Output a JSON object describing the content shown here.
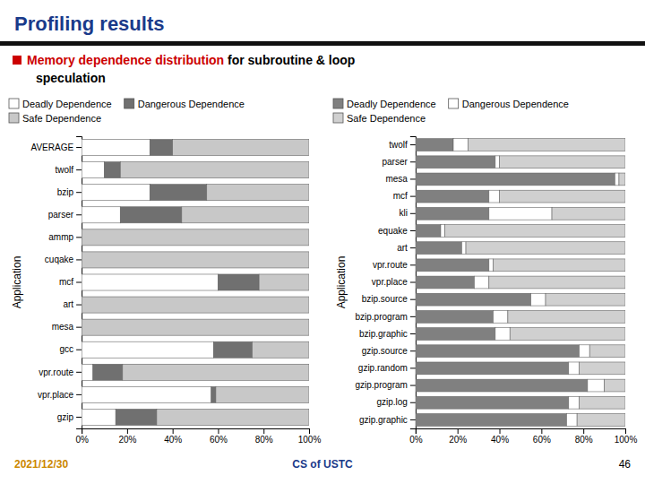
{
  "title": {
    "text": "Profiling results",
    "color": "#1a3a8a"
  },
  "subtitle": [
    {
      "text": "Memory dependence distribution",
      "color": "#cc0000"
    },
    {
      "text": " for subroutine & loop",
      "color": "#000000"
    },
    {
      "text": "speculation",
      "color": "#000000"
    }
  ],
  "annotations": [
    {
      "text": "2021/12/30",
      "color": "#cc8800"
    },
    {
      "text": "CS of USTC",
      "color": "#1a3a8a"
    },
    {
      "text": "46",
      "color": "#000000"
    }
  ],
  "chart_data": [
    {
      "type": "bar",
      "orientation": "horizontal",
      "stacked": true,
      "legend": "top",
      "ylabel": "Application",
      "categories": [
        "AVERAGE",
        "twolf",
        "bzip",
        "parser",
        "ammp",
        "cuqake",
        "mcf",
        "art",
        "mesa",
        "gcc",
        "vpr.route",
        "vpr.place",
        "gzip"
      ],
      "series": [
        {
          "name": "Deadly Dependence",
          "color": "#ffffff",
          "values": [
            30,
            10,
            30,
            17,
            0,
            0,
            60,
            0,
            0,
            58,
            5,
            57,
            15
          ]
        },
        {
          "name": "Dangerous Dependence",
          "color": "#707070",
          "values": [
            10,
            7,
            25,
            27,
            0,
            0,
            18,
            0,
            0,
            17,
            13,
            2,
            18
          ]
        },
        {
          "name": "Safe Dependence",
          "color": "#c8c8c8",
          "values": [
            60,
            83,
            45,
            56,
            100,
            100,
            22,
            100,
            100,
            25,
            82,
            41,
            67
          ]
        }
      ],
      "xlim": [
        0,
        100
      ],
      "xticks": [
        {
          "value": 0,
          "label": "0%"
        },
        {
          "value": 20,
          "label": "20%"
        },
        {
          "value": 40,
          "label": "40%"
        },
        {
          "value": 60,
          "label": "60%"
        },
        {
          "value": 80,
          "label": "80%"
        },
        {
          "value": 100,
          "label": "100%"
        }
      ]
    },
    {
      "type": "bar",
      "orientation": "horizontal",
      "stacked": true,
      "legend": "top",
      "ylabel": "Application",
      "categories": [
        "twolf",
        "parser",
        "mesa",
        "mcf",
        "kli",
        "equake",
        "art",
        "vpr.route",
        "vpr.place",
        "bzip.source",
        "bzip.program",
        "bzip.graphic",
        "gzip.source",
        "gzip.random",
        "gzip.program",
        "gzip.log",
        "gzip.graphic"
      ],
      "series": [
        {
          "name": "Deadly Dependence",
          "color": "#808080",
          "values": [
            18,
            38,
            95,
            35,
            35,
            12,
            22,
            35,
            28,
            55,
            37,
            38,
            78,
            73,
            82,
            73,
            72
          ]
        },
        {
          "name": "Dangerous Dependence",
          "color": "#ffffff",
          "values": [
            7,
            2,
            2,
            5,
            30,
            2,
            2,
            2,
            7,
            7,
            7,
            7,
            5,
            5,
            8,
            5,
            5
          ]
        },
        {
          "name": "Safe Dependence",
          "color": "#d0d0d0",
          "values": [
            75,
            60,
            3,
            60,
            35,
            86,
            76,
            63,
            65,
            38,
            56,
            55,
            17,
            22,
            10,
            22,
            23
          ]
        }
      ],
      "xlim": [
        0,
        100
      ],
      "xticks": [
        {
          "value": 0,
          "label": "0%"
        },
        {
          "value": 20,
          "label": "20%"
        },
        {
          "value": 40,
          "label": "40%"
        },
        {
          "value": 60,
          "label": "60%"
        },
        {
          "value": 80,
          "label": "80%"
        },
        {
          "value": 100,
          "label": "100%"
        }
      ]
    }
  ]
}
